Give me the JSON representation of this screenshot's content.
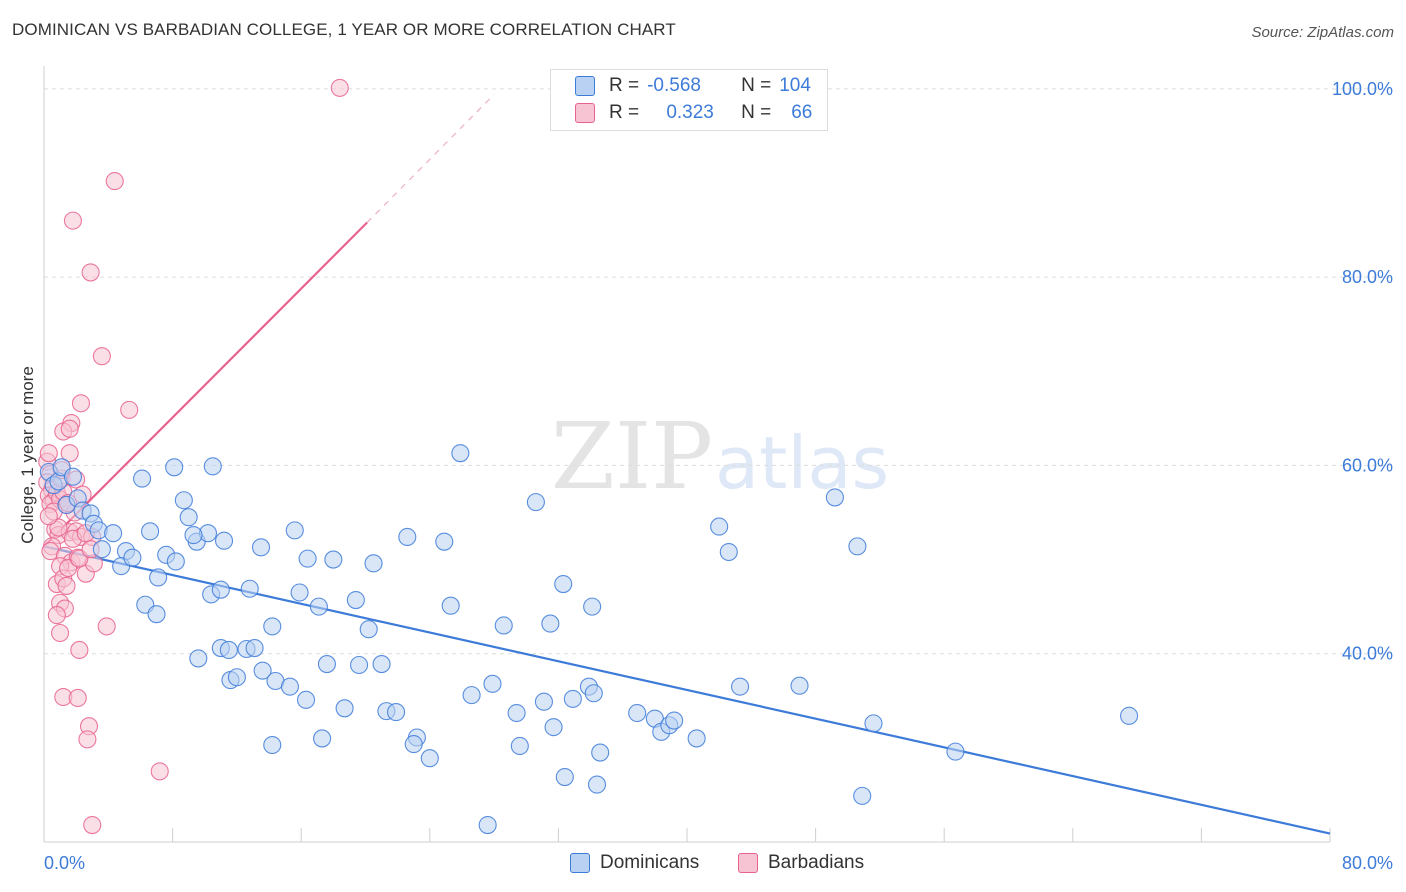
{
  "header": {
    "title": "DOMINICAN VS BARBADIAN COLLEGE, 1 YEAR OR MORE CORRELATION CHART",
    "source": "Source: ZipAtlas.com"
  },
  "watermark": {
    "zip": "ZIP",
    "atlas": "atlas"
  },
  "colors": {
    "blue": "#3d7bd9",
    "blue_fill": "#b9d2f3",
    "pink": "#e8628d",
    "pink_fill": "#f7c4d4",
    "grid": "#dcdcdc",
    "tick_text": "#3d7bd9"
  },
  "legend_top": {
    "rows": [
      {
        "r_label": "R =",
        "r_value": "-0.568",
        "n_label": "N =",
        "n_value": "104"
      },
      {
        "r_label": "R =",
        "r_value": "0.323",
        "n_label": "N =",
        "n_value": "66"
      }
    ]
  },
  "legend_bottom": {
    "items": [
      {
        "label": "Dominicans"
      },
      {
        "label": "Barbadians"
      }
    ]
  },
  "chart_data": {
    "type": "scatter",
    "title": "DOMINICAN VS BARBADIAN COLLEGE, 1 YEAR OR MORE CORRELATION CHART",
    "xlabel": "",
    "ylabel": "College, 1 year or more",
    "xlim": [
      0,
      80
    ],
    "ylim": [
      20,
      102
    ],
    "x_tick_labels": [
      "0.0%",
      "80.0%"
    ],
    "y_ticks": [
      40,
      60,
      80,
      100
    ],
    "y_tick_labels": [
      "40.0%",
      "60.0%",
      "80.0%",
      "100.0%"
    ],
    "grid": "horizontal dashed",
    "legend_position": "top-center",
    "series": [
      {
        "name": "Dominicans",
        "color": "#3d7bd9",
        "fill": "#b9d2f3",
        "r": -0.568,
        "n": 104,
        "trend": {
          "x": [
            0,
            80
          ],
          "y": [
            51.4,
            20.9
          ]
        },
        "points": [
          [
            0.3,
            59.3
          ],
          [
            0.6,
            57.9
          ],
          [
            0.9,
            58.3
          ],
          [
            1.1,
            59.8
          ],
          [
            1.4,
            55.8
          ],
          [
            1.8,
            58.8
          ],
          [
            2.1,
            56.5
          ],
          [
            2.4,
            55.2
          ],
          [
            2.9,
            54.9
          ],
          [
            3.1,
            53.8
          ],
          [
            3.4,
            53.1
          ],
          [
            4.3,
            52.8
          ],
          [
            3.6,
            51.1
          ],
          [
            5.1,
            50.9
          ],
          [
            4.8,
            49.3
          ],
          [
            5.5,
            50.2
          ],
          [
            6.6,
            53.0
          ],
          [
            7.6,
            50.5
          ],
          [
            8.2,
            49.8
          ],
          [
            6.1,
            58.6
          ],
          [
            8.1,
            59.8
          ],
          [
            8.7,
            56.3
          ],
          [
            9.0,
            54.5
          ],
          [
            9.5,
            51.9
          ],
          [
            10.2,
            52.8
          ],
          [
            10.5,
            59.9
          ],
          [
            7.1,
            48.1
          ],
          [
            6.3,
            45.2
          ],
          [
            7.0,
            44.2
          ],
          [
            10.4,
            46.3
          ],
          [
            11.0,
            46.8
          ],
          [
            9.6,
            39.5
          ],
          [
            11.0,
            40.6
          ],
          [
            11.5,
            40.4
          ],
          [
            11.6,
            37.2
          ],
          [
            12.0,
            37.5
          ],
          [
            12.6,
            40.5
          ],
          [
            13.1,
            40.6
          ],
          [
            12.8,
            46.9
          ],
          [
            13.5,
            51.3
          ],
          [
            14.2,
            42.9
          ],
          [
            13.6,
            38.2
          ],
          [
            14.4,
            37.1
          ],
          [
            15.3,
            36.5
          ],
          [
            15.6,
            53.1
          ],
          [
            16.4,
            50.1
          ],
          [
            15.9,
            46.5
          ],
          [
            17.1,
            45.0
          ],
          [
            16.3,
            35.1
          ],
          [
            17.6,
            38.9
          ],
          [
            18.0,
            50.0
          ],
          [
            18.7,
            34.2
          ],
          [
            19.4,
            45.7
          ],
          [
            19.6,
            38.8
          ],
          [
            20.2,
            42.6
          ],
          [
            20.5,
            49.6
          ],
          [
            21.0,
            38.9
          ],
          [
            21.3,
            33.9
          ],
          [
            21.9,
            33.8
          ],
          [
            14.2,
            30.3
          ],
          [
            17.3,
            31.0
          ],
          [
            22.6,
            52.4
          ],
          [
            23.2,
            31.1
          ],
          [
            23.0,
            30.4
          ],
          [
            24.0,
            28.9
          ],
          [
            24.9,
            51.9
          ],
          [
            25.3,
            45.1
          ],
          [
            25.9,
            61.3
          ],
          [
            26.6,
            35.6
          ],
          [
            27.9,
            36.8
          ],
          [
            28.6,
            43.0
          ],
          [
            29.4,
            33.7
          ],
          [
            29.6,
            30.2
          ],
          [
            30.6,
            56.1
          ],
          [
            31.1,
            34.9
          ],
          [
            31.5,
            43.2
          ],
          [
            31.7,
            32.2
          ],
          [
            32.4,
            26.9
          ],
          [
            32.9,
            35.2
          ],
          [
            34.1,
            45.0
          ],
          [
            34.4,
            26.1
          ],
          [
            34.6,
            29.5
          ],
          [
            33.9,
            36.5
          ],
          [
            34.2,
            35.8
          ],
          [
            36.9,
            33.7
          ],
          [
            38.0,
            33.1
          ],
          [
            38.4,
            31.7
          ],
          [
            38.9,
            32.4
          ],
          [
            39.2,
            32.9
          ],
          [
            40.6,
            31.0
          ],
          [
            42.0,
            53.5
          ],
          [
            42.6,
            50.8
          ],
          [
            43.3,
            36.5
          ],
          [
            47.0,
            36.6
          ],
          [
            49.2,
            56.6
          ],
          [
            50.6,
            51.4
          ],
          [
            50.9,
            24.9
          ],
          [
            51.6,
            32.6
          ],
          [
            56.7,
            29.6
          ],
          [
            67.5,
            33.4
          ],
          [
            32.3,
            47.4
          ],
          [
            27.6,
            21.8
          ],
          [
            9.3,
            52.6
          ],
          [
            11.2,
            52.0
          ]
        ]
      },
      {
        "name": "Barbadians",
        "color": "#e8628d",
        "fill": "#f7c4d4",
        "r": 0.323,
        "n": 66,
        "trend": {
          "x": [
            0,
            20.1
          ],
          "y": [
            51.4,
            85.8
          ]
        },
        "trend_dashed": {
          "x": [
            20.1,
            28.0
          ],
          "y": [
            85.8,
            99.4
          ]
        },
        "points": [
          [
            0.2,
            60.4
          ],
          [
            0.3,
            61.3
          ],
          [
            0.4,
            59.1
          ],
          [
            0.2,
            58.2
          ],
          [
            0.5,
            57.4
          ],
          [
            0.3,
            56.8
          ],
          [
            0.6,
            56.2
          ],
          [
            0.4,
            55.9
          ],
          [
            0.8,
            57.1
          ],
          [
            1.0,
            56.4
          ],
          [
            1.2,
            57.2
          ],
          [
            1.4,
            55.8
          ],
          [
            1.1,
            58.6
          ],
          [
            0.7,
            53.2
          ],
          [
            0.9,
            52.6
          ],
          [
            0.5,
            51.4
          ],
          [
            0.4,
            50.9
          ],
          [
            1.6,
            52.9
          ],
          [
            2.0,
            53.0
          ],
          [
            2.3,
            52.4
          ],
          [
            1.3,
            50.4
          ],
          [
            1.7,
            49.7
          ],
          [
            2.1,
            50.2
          ],
          [
            1.0,
            49.3
          ],
          [
            0.8,
            47.4
          ],
          [
            1.2,
            48.0
          ],
          [
            1.5,
            49.1
          ],
          [
            2.6,
            48.5
          ],
          [
            3.1,
            49.6
          ],
          [
            1.0,
            45.4
          ],
          [
            1.3,
            44.8
          ],
          [
            0.8,
            44.1
          ],
          [
            1.0,
            42.2
          ],
          [
            3.9,
            42.9
          ],
          [
            2.2,
            40.4
          ],
          [
            1.2,
            35.4
          ],
          [
            2.1,
            35.3
          ],
          [
            2.8,
            32.3
          ],
          [
            2.7,
            30.9
          ],
          [
            1.7,
            64.5
          ],
          [
            1.2,
            63.6
          ],
          [
            1.6,
            63.9
          ],
          [
            1.6,
            61.3
          ],
          [
            2.3,
            66.6
          ],
          [
            2.0,
            58.5
          ],
          [
            3.0,
            52.4
          ],
          [
            3.6,
            71.6
          ],
          [
            2.9,
            80.5
          ],
          [
            1.8,
            86.0
          ],
          [
            4.4,
            90.2
          ],
          [
            5.3,
            65.9
          ],
          [
            7.2,
            27.5
          ],
          [
            3.0,
            21.8
          ],
          [
            18.4,
            100.1
          ],
          [
            1.9,
            55.0
          ],
          [
            2.4,
            56.9
          ],
          [
            0.6,
            55.1
          ],
          [
            2.2,
            50.1
          ],
          [
            1.8,
            52.2
          ],
          [
            0.9,
            53.4
          ],
          [
            1.5,
            56.0
          ],
          [
            2.6,
            52.8
          ],
          [
            1.1,
            59.5
          ],
          [
            0.3,
            54.6
          ],
          [
            1.4,
            47.2
          ],
          [
            2.9,
            51.1
          ]
        ]
      }
    ]
  }
}
